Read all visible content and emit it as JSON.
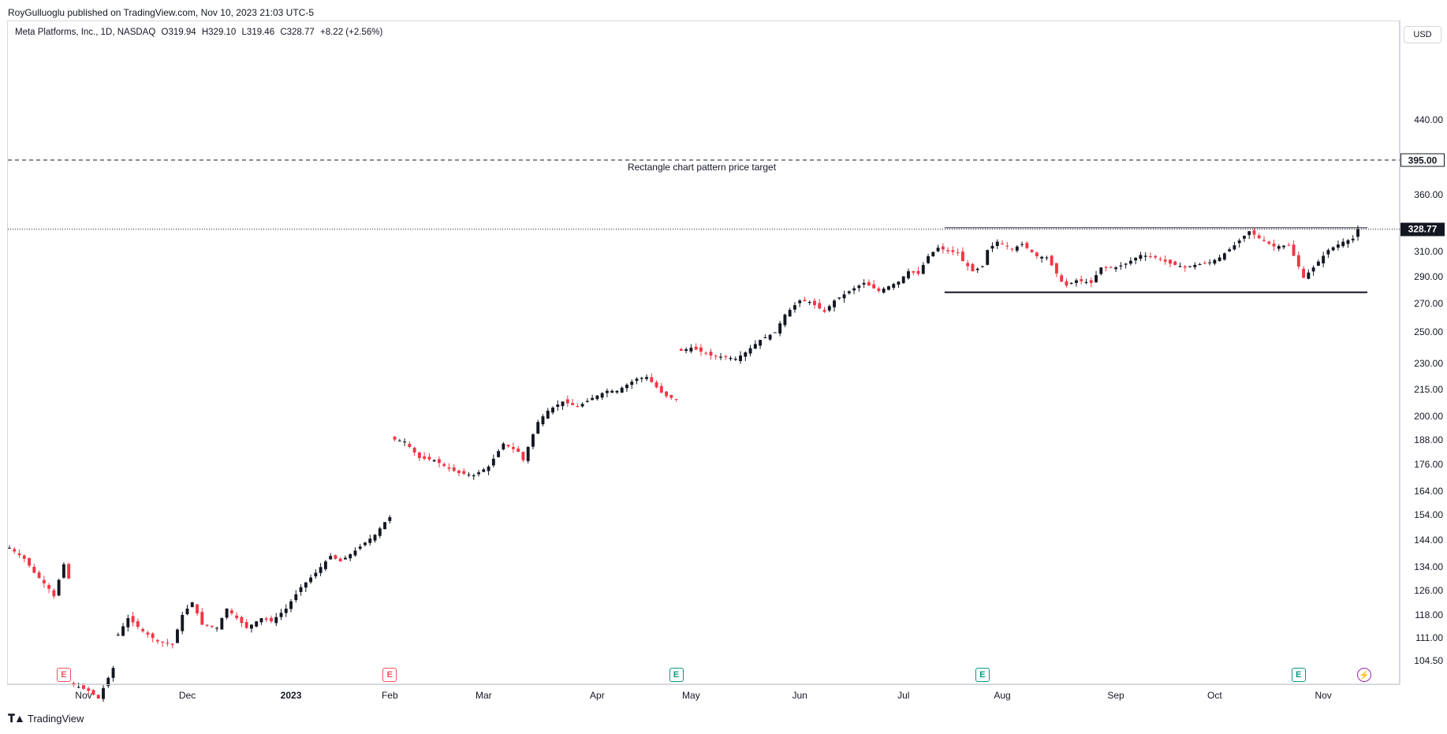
{
  "header": {
    "published": "RoyGulluoglu published on TradingView.com, Nov 10, 2023 21:03 UTC-5"
  },
  "legend": {
    "symbol": "Meta Platforms, Inc., 1D, NASDAQ",
    "open": "O319.94",
    "high": "H329.10",
    "low": "L319.46",
    "close": "C328.77",
    "change": "+8.22 (+2.56%)"
  },
  "axis": {
    "currency": "USD"
  },
  "annotations": {
    "target_label": "Rectangle chart pattern price target",
    "target_price": "395.00",
    "last_price": "328.77"
  },
  "brand": {
    "name": "TradingView"
  },
  "colors": {
    "up": "#131722",
    "down": "#f23645",
    "earnings_past": "#f7525f",
    "earnings_future": "#089981",
    "dividend": "#9c27b0"
  },
  "icons": {
    "logo": "tradingview-logo-icon",
    "earnings": "earnings-e-icon",
    "dividend": "dividend-lightning-icon"
  },
  "chart_data": {
    "type": "candlestick",
    "ylabel": "USD",
    "yticks": [
      104.5,
      111.0,
      118.0,
      126.0,
      134.0,
      144.0,
      154.0,
      164.0,
      176.0,
      188.0,
      200.0,
      215.0,
      230.0,
      250.0,
      270.0,
      290.0,
      310.0,
      360.0,
      440.0
    ],
    "ytick_labels": [
      "104.50",
      "111.00",
      "118.00",
      "126.00",
      "134.00",
      "144.00",
      "154.00",
      "164.00",
      "176.00",
      "188.00",
      "200.00",
      "215.00",
      "230.00",
      "250.00",
      "270.00",
      "290.00",
      "310.00",
      "360.00",
      "440.00"
    ],
    "scale": "log",
    "xtick_labels": [
      {
        "label": "Nov",
        "date": "2022-11-01",
        "bold": false
      },
      {
        "label": "Dec",
        "date": "2022-12-01",
        "bold": false
      },
      {
        "label": "2023",
        "date": "2023-01-03",
        "bold": true
      },
      {
        "label": "Feb",
        "date": "2023-02-01",
        "bold": false
      },
      {
        "label": "Mar",
        "date": "2023-03-01",
        "bold": false
      },
      {
        "label": "Apr",
        "date": "2023-04-03",
        "bold": false
      },
      {
        "label": "May",
        "date": "2023-05-01",
        "bold": false
      },
      {
        "label": "Jun",
        "date": "2023-06-01",
        "bold": false
      },
      {
        "label": "Jul",
        "date": "2023-07-03",
        "bold": false
      },
      {
        "label": "Aug",
        "date": "2023-08-01",
        "bold": false
      },
      {
        "label": "Sep",
        "date": "2023-09-01",
        "bold": false
      },
      {
        "label": "Oct",
        "date": "2023-10-02",
        "bold": false
      },
      {
        "label": "Nov",
        "date": "2023-11-01",
        "bold": false
      }
    ],
    "date_range": [
      "2022-10-11",
      "2023-11-10"
    ],
    "anchors": [
      [
        "2022-10-11",
        141
      ],
      [
        "2022-10-14",
        137
      ],
      [
        "2022-10-18",
        132
      ],
      [
        "2022-10-21",
        126.5
      ],
      [
        "2022-10-24",
        124
      ],
      [
        "2022-10-26",
        135
      ],
      [
        "2022-10-27",
        130
      ],
      [
        "2022-10-28",
        97.9
      ],
      [
        "2022-11-02",
        96.5
      ],
      [
        "2022-11-04",
        94.5
      ],
      [
        "2022-11-09",
        102.5
      ],
      [
        "2022-11-10",
        112
      ],
      [
        "2022-11-14",
        117
      ],
      [
        "2022-11-17",
        113
      ],
      [
        "2022-11-22",
        110
      ],
      [
        "2022-11-28",
        109
      ],
      [
        "2022-11-30",
        118
      ],
      [
        "2022-12-02",
        122
      ],
      [
        "2022-12-06",
        115
      ],
      [
        "2022-12-09",
        114
      ],
      [
        "2022-12-13",
        120
      ],
      [
        "2022-12-19",
        114
      ],
      [
        "2022-12-22",
        117
      ],
      [
        "2022-12-27",
        116
      ],
      [
        "2022-12-30",
        120
      ],
      [
        "2023-01-05",
        127
      ],
      [
        "2023-01-10",
        132
      ],
      [
        "2023-01-13",
        138
      ],
      [
        "2023-01-18",
        136
      ],
      [
        "2023-01-23",
        140
      ],
      [
        "2023-01-27",
        146
      ],
      [
        "2023-01-31",
        151
      ],
      [
        "2023-02-01",
        153
      ],
      [
        "2023-02-02",
        188
      ],
      [
        "2023-02-06",
        187
      ],
      [
        "2023-02-09",
        179
      ],
      [
        "2023-02-14",
        178
      ],
      [
        "2023-02-17",
        174
      ],
      [
        "2023-02-22",
        172
      ],
      [
        "2023-02-27",
        171
      ],
      [
        "2023-03-02",
        175
      ],
      [
        "2023-03-07",
        186
      ],
      [
        "2023-03-10",
        182
      ],
      [
        "2023-03-13",
        178
      ],
      [
        "2023-03-16",
        197
      ],
      [
        "2023-03-20",
        203
      ],
      [
        "2023-03-23",
        208
      ],
      [
        "2023-03-28",
        205
      ],
      [
        "2023-03-31",
        210
      ],
      [
        "2023-04-05",
        214
      ],
      [
        "2023-04-10",
        214
      ],
      [
        "2023-04-14",
        221
      ],
      [
        "2023-04-18",
        222
      ],
      [
        "2023-04-21",
        213
      ],
      [
        "2023-04-24",
        211
      ],
      [
        "2023-04-26",
        209
      ],
      [
        "2023-04-27",
        238
      ],
      [
        "2023-05-01",
        240
      ],
      [
        "2023-05-05",
        235
      ],
      [
        "2023-05-10",
        234
      ],
      [
        "2023-05-12",
        233
      ],
      [
        "2023-05-16",
        237
      ],
      [
        "2023-05-19",
        245
      ],
      [
        "2023-05-24",
        250
      ],
      [
        "2023-05-26",
        262
      ],
      [
        "2023-06-01",
        272
      ],
      [
        "2023-06-05",
        271
      ],
      [
        "2023-06-08",
        264
      ],
      [
        "2023-06-12",
        272
      ],
      [
        "2023-06-16",
        281
      ],
      [
        "2023-06-21",
        285
      ],
      [
        "2023-06-26",
        279
      ],
      [
        "2023-06-30",
        286
      ],
      [
        "2023-07-05",
        294
      ],
      [
        "2023-07-07",
        292
      ],
      [
        "2023-07-11",
        306
      ],
      [
        "2023-07-13",
        313
      ],
      [
        "2023-07-17",
        310
      ],
      [
        "2023-07-19",
        309
      ],
      [
        "2023-07-20",
        302
      ],
      [
        "2023-07-24",
        294
      ],
      [
        "2023-07-26",
        298
      ],
      [
        "2023-07-27",
        311
      ],
      [
        "2023-07-31",
        318
      ],
      [
        "2023-08-03",
        312
      ],
      [
        "2023-08-07",
        316
      ],
      [
        "2023-08-10",
        306
      ],
      [
        "2023-08-14",
        305
      ],
      [
        "2023-08-17",
        286
      ],
      [
        "2023-08-18",
        283
      ],
      [
        "2023-08-22",
        287
      ],
      [
        "2023-08-25",
        285
      ],
      [
        "2023-08-29",
        297
      ],
      [
        "2023-09-01",
        297
      ],
      [
        "2023-09-06",
        300
      ],
      [
        "2023-09-11",
        307
      ],
      [
        "2023-09-14",
        305
      ],
      [
        "2023-09-19",
        300
      ],
      [
        "2023-09-22",
        297
      ],
      [
        "2023-09-26",
        299
      ],
      [
        "2023-09-29",
        301
      ],
      [
        "2023-10-03",
        305
      ],
      [
        "2023-10-06",
        315
      ],
      [
        "2023-10-11",
        327
      ],
      [
        "2023-10-13",
        321
      ],
      [
        "2023-10-18",
        314
      ],
      [
        "2023-10-23",
        315
      ],
      [
        "2023-10-26",
        289
      ],
      [
        "2023-10-30",
        297
      ],
      [
        "2023-11-02",
        311
      ],
      [
        "2023-11-07",
        318
      ],
      [
        "2023-11-09",
        320.55
      ],
      [
        "2023-11-10",
        328.77
      ]
    ],
    "levels": {
      "price_target": 395.0,
      "last_close": 328.77,
      "rectangle_top": 330.0,
      "rectangle_bottom": 278.0
    },
    "rectangle_span": [
      "2023-07-14",
      "2023-11-15"
    ],
    "events": [
      {
        "type": "earnings",
        "date": "2022-10-26",
        "status": "past"
      },
      {
        "type": "earnings",
        "date": "2023-02-01",
        "status": "past"
      },
      {
        "type": "earnings",
        "date": "2023-04-26",
        "status": "reported"
      },
      {
        "type": "earnings",
        "date": "2023-07-26",
        "status": "reported"
      },
      {
        "type": "earnings",
        "date": "2023-10-25",
        "status": "reported"
      },
      {
        "type": "dividend",
        "date": "2023-11-10",
        "status": "upcoming"
      }
    ]
  }
}
